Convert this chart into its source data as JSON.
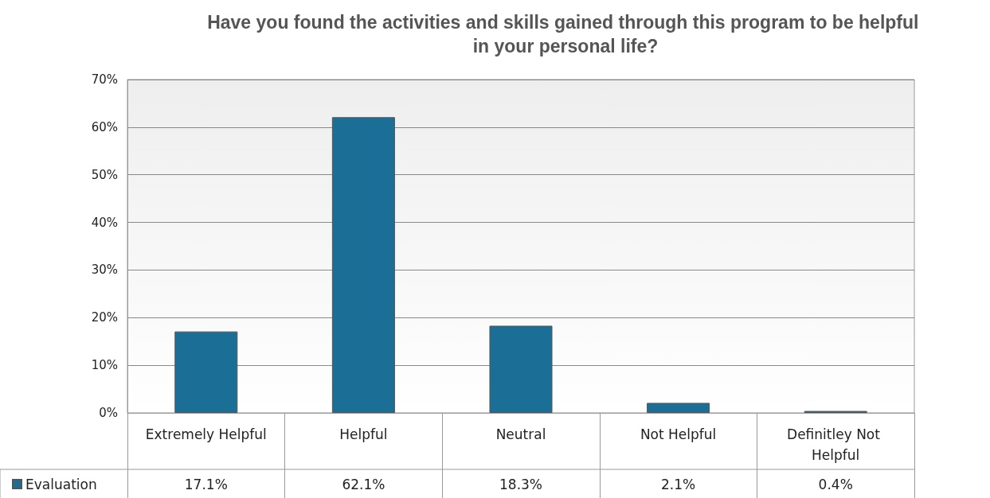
{
  "chart_data": {
    "type": "bar",
    "title": "Have you found the activities and skills gained through this program to be helpful in your personal life?",
    "categories": [
      "Extremely Helpful",
      "Helpful",
      "Neutral",
      "Not Helpful",
      "Definitley Not Helpful"
    ],
    "series": [
      {
        "name": "Evaluation",
        "color": "#1b6f97",
        "values": [
          17.1,
          62.1,
          18.3,
          2.1,
          0.4
        ],
        "value_labels": [
          "17.1%",
          "62.1%",
          "18.3%",
          "2.1%",
          "0.4%"
        ]
      }
    ],
    "ylim": [
      0,
      70
    ],
    "yticks": [
      {
        "value": 0,
        "label": "0%"
      },
      {
        "value": 10,
        "label": "10%"
      },
      {
        "value": 20,
        "label": "20%"
      },
      {
        "value": 30,
        "label": "30%"
      },
      {
        "value": 40,
        "label": "40%"
      },
      {
        "value": 50,
        "label": "50%"
      },
      {
        "value": 60,
        "label": "60%"
      },
      {
        "value": 70,
        "label": "70%"
      }
    ],
    "grid": "y",
    "legend": "bottom left"
  }
}
